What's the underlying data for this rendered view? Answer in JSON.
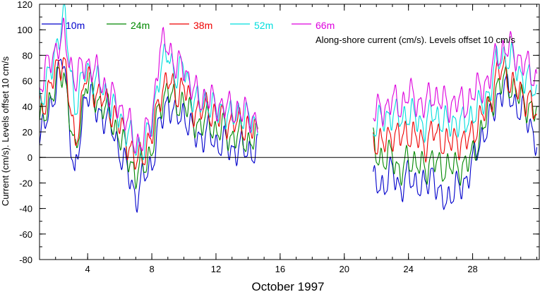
{
  "chart_data": {
    "type": "line",
    "title": "Along-shore current (cm/s). Levels offset 10 cm/s",
    "xlabel": "October 1997",
    "ylabel": "Current (cm/s). Levels offset 10 cm/s",
    "xlim": [
      1,
      32.2
    ],
    "ylim": [
      -80,
      120
    ],
    "x_ticks": [
      4,
      8,
      12,
      16,
      20,
      24,
      28
    ],
    "y_ticks": [
      -80,
      -60,
      -40,
      -20,
      0,
      20,
      40,
      60,
      80,
      100,
      120
    ],
    "zero_line": true,
    "grid": false,
    "legend_placement": "top-left, horizontal",
    "segments": [
      {
        "x_start": 1.0,
        "x_end": 14.6
      },
      {
        "x_start": 21.8,
        "x_end": 32.0
      }
    ],
    "series": [
      {
        "name": "10m",
        "color": "#0000cc",
        "offset": 0,
        "anchors": [
          [
            1.0,
            12
          ],
          [
            1.8,
            45
          ],
          [
            2.5,
            80
          ],
          [
            3.2,
            -20
          ],
          [
            3.9,
            55
          ],
          [
            4.6,
            35
          ],
          [
            5.3,
            30
          ],
          [
            6.0,
            5
          ],
          [
            6.6,
            -15
          ],
          [
            7.0,
            -32
          ],
          [
            7.5,
            -15
          ],
          [
            8.0,
            -5
          ],
          [
            8.5,
            25
          ],
          [
            9.0,
            45
          ],
          [
            9.5,
            30
          ],
          [
            10.0,
            35
          ],
          [
            10.5,
            20
          ],
          [
            11.0,
            15
          ],
          [
            11.5,
            20
          ],
          [
            12.0,
            10
          ],
          [
            12.5,
            12
          ],
          [
            13.0,
            5
          ],
          [
            13.5,
            8
          ],
          [
            14.0,
            5
          ],
          [
            14.6,
            5
          ],
          [
            21.8,
            -20
          ],
          [
            22.5,
            -22
          ],
          [
            23.0,
            -10
          ],
          [
            23.5,
            -25
          ],
          [
            24.0,
            -15
          ],
          [
            24.5,
            -20
          ],
          [
            25.0,
            -25
          ],
          [
            25.5,
            -10
          ],
          [
            26.0,
            -35
          ],
          [
            26.5,
            -30
          ],
          [
            27.0,
            -25
          ],
          [
            27.5,
            -20
          ],
          [
            28.0,
            -5
          ],
          [
            28.5,
            15
          ],
          [
            29.0,
            25
          ],
          [
            29.5,
            45
          ],
          [
            30.0,
            55
          ],
          [
            30.5,
            45
          ],
          [
            31.0,
            35
          ],
          [
            31.5,
            30
          ],
          [
            32.0,
            10
          ]
        ]
      },
      {
        "name": "24m",
        "color": "#008800",
        "offset": 10,
        "anchors": [
          [
            1.0,
            25
          ],
          [
            1.8,
            50
          ],
          [
            2.5,
            70
          ],
          [
            3.2,
            0
          ],
          [
            3.9,
            60
          ],
          [
            4.6,
            45
          ],
          [
            5.3,
            35
          ],
          [
            6.0,
            15
          ],
          [
            6.6,
            0
          ],
          [
            7.0,
            -15
          ],
          [
            7.5,
            -5
          ],
          [
            8.0,
            5
          ],
          [
            8.5,
            40
          ],
          [
            9.0,
            55
          ],
          [
            9.5,
            40
          ],
          [
            10.0,
            45
          ],
          [
            10.5,
            30
          ],
          [
            11.0,
            25
          ],
          [
            11.5,
            30
          ],
          [
            12.0,
            20
          ],
          [
            12.5,
            22
          ],
          [
            13.0,
            15
          ],
          [
            13.5,
            18
          ],
          [
            14.0,
            12
          ],
          [
            14.6,
            15
          ],
          [
            21.8,
            10
          ],
          [
            22.5,
            -5
          ],
          [
            23.0,
            5
          ],
          [
            23.5,
            -15
          ],
          [
            24.0,
            0
          ],
          [
            24.5,
            -5
          ],
          [
            25.0,
            -10
          ],
          [
            25.5,
            0
          ],
          [
            26.0,
            -10
          ],
          [
            26.5,
            -5
          ],
          [
            27.0,
            -10
          ],
          [
            27.5,
            -5
          ],
          [
            28.0,
            0
          ],
          [
            28.5,
            20
          ],
          [
            29.0,
            35
          ],
          [
            29.5,
            55
          ],
          [
            30.0,
            60
          ],
          [
            30.5,
            55
          ],
          [
            31.0,
            45
          ],
          [
            31.5,
            40
          ],
          [
            32.0,
            35
          ]
        ]
      },
      {
        "name": "38m",
        "color": "#ee0000",
        "offset": 20,
        "anchors": [
          [
            1.0,
            35
          ],
          [
            1.8,
            60
          ],
          [
            2.5,
            80
          ],
          [
            3.2,
            10
          ],
          [
            3.9,
            65
          ],
          [
            4.6,
            50
          ],
          [
            5.3,
            40
          ],
          [
            6.0,
            25
          ],
          [
            6.6,
            10
          ],
          [
            7.0,
            -5
          ],
          [
            7.5,
            5
          ],
          [
            8.0,
            15
          ],
          [
            8.5,
            50
          ],
          [
            9.0,
            60
          ],
          [
            9.5,
            50
          ],
          [
            10.0,
            55
          ],
          [
            10.5,
            40
          ],
          [
            11.0,
            35
          ],
          [
            11.5,
            40
          ],
          [
            12.0,
            30
          ],
          [
            12.5,
            32
          ],
          [
            13.0,
            25
          ],
          [
            13.5,
            28
          ],
          [
            14.0,
            22
          ],
          [
            14.6,
            20
          ],
          [
            21.8,
            15
          ],
          [
            22.5,
            10
          ],
          [
            23.0,
            20
          ],
          [
            23.5,
            15
          ],
          [
            24.0,
            20
          ],
          [
            24.5,
            15
          ],
          [
            25.0,
            10
          ],
          [
            25.5,
            20
          ],
          [
            26.0,
            15
          ],
          [
            26.5,
            10
          ],
          [
            27.0,
            15
          ],
          [
            27.5,
            10
          ],
          [
            28.0,
            20
          ],
          [
            28.5,
            30
          ],
          [
            29.0,
            40
          ],
          [
            29.5,
            65
          ],
          [
            30.0,
            70
          ],
          [
            30.5,
            55
          ],
          [
            31.0,
            50
          ],
          [
            31.5,
            45
          ],
          [
            32.0,
            30
          ]
        ]
      },
      {
        "name": "52m",
        "color": "#00dddd",
        "offset": 30,
        "anchors": [
          [
            1.0,
            45
          ],
          [
            1.8,
            70
          ],
          [
            2.5,
            115
          ],
          [
            3.2,
            40
          ],
          [
            3.9,
            70
          ],
          [
            4.6,
            60
          ],
          [
            5.3,
            45
          ],
          [
            6.0,
            30
          ],
          [
            6.6,
            20
          ],
          [
            7.0,
            5
          ],
          [
            7.5,
            10
          ],
          [
            8.0,
            25
          ],
          [
            8.5,
            70
          ],
          [
            9.0,
            80
          ],
          [
            9.5,
            65
          ],
          [
            10.0,
            70
          ],
          [
            10.5,
            50
          ],
          [
            11.0,
            40
          ],
          [
            11.5,
            45
          ],
          [
            12.0,
            35
          ],
          [
            12.5,
            38
          ],
          [
            13.0,
            30
          ],
          [
            13.5,
            35
          ],
          [
            14.0,
            30
          ],
          [
            14.6,
            25
          ],
          [
            21.8,
            25
          ],
          [
            22.5,
            30
          ],
          [
            23.0,
            35
          ],
          [
            23.5,
            30
          ],
          [
            24.0,
            35
          ],
          [
            24.5,
            30
          ],
          [
            25.0,
            25
          ],
          [
            25.5,
            35
          ],
          [
            26.0,
            30
          ],
          [
            26.5,
            25
          ],
          [
            27.0,
            30
          ],
          [
            27.5,
            25
          ],
          [
            28.0,
            35
          ],
          [
            28.5,
            40
          ],
          [
            29.0,
            50
          ],
          [
            29.5,
            75
          ],
          [
            30.0,
            80
          ],
          [
            30.5,
            75
          ],
          [
            31.0,
            65
          ],
          [
            31.5,
            60
          ],
          [
            32.0,
            50
          ]
        ]
      },
      {
        "name": "66m",
        "color": "#dd00dd",
        "offset": 40,
        "anchors": [
          [
            1.0,
            55
          ],
          [
            1.8,
            80
          ],
          [
            2.5,
            95
          ],
          [
            3.2,
            60
          ],
          [
            3.9,
            75
          ],
          [
            4.6,
            65
          ],
          [
            5.3,
            50
          ],
          [
            6.0,
            40
          ],
          [
            6.6,
            25
          ],
          [
            7.0,
            10
          ],
          [
            7.5,
            15
          ],
          [
            8.0,
            30
          ],
          [
            8.5,
            85
          ],
          [
            9.0,
            90
          ],
          [
            9.5,
            70
          ],
          [
            10.0,
            72
          ],
          [
            10.5,
            55
          ],
          [
            11.0,
            45
          ],
          [
            11.5,
            48
          ],
          [
            12.0,
            40
          ],
          [
            12.5,
            42
          ],
          [
            13.0,
            35
          ],
          [
            13.5,
            38
          ],
          [
            14.0,
            32
          ],
          [
            14.6,
            30
          ],
          [
            21.8,
            35
          ],
          [
            22.5,
            38
          ],
          [
            23.0,
            45
          ],
          [
            23.5,
            40
          ],
          [
            24.0,
            50
          ],
          [
            24.5,
            45
          ],
          [
            25.0,
            40
          ],
          [
            25.5,
            50
          ],
          [
            26.0,
            45
          ],
          [
            26.5,
            40
          ],
          [
            27.0,
            45
          ],
          [
            27.5,
            40
          ],
          [
            28.0,
            50
          ],
          [
            28.5,
            55
          ],
          [
            29.0,
            60
          ],
          [
            29.5,
            80
          ],
          [
            30.0,
            85
          ],
          [
            30.5,
            85
          ],
          [
            31.0,
            75
          ],
          [
            31.5,
            70
          ],
          [
            32.0,
            60
          ]
        ]
      }
    ]
  }
}
